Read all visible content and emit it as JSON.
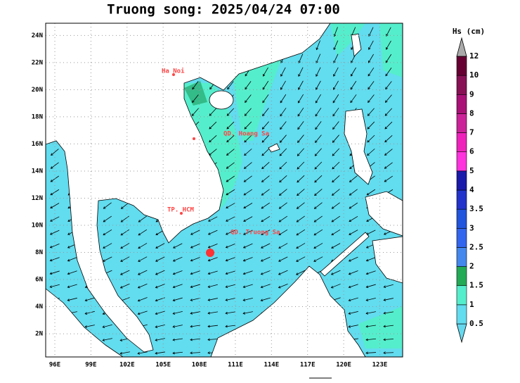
{
  "title": "Truong song: 2025/04/24 07:00",
  "map": {
    "sea_color": "#62dcef",
    "lon_range": [
      95.24,
      124.9
    ],
    "lat_range": [
      0.29,
      24.9
    ],
    "lat_ticks": [
      {
        "value": 2,
        "label": "2N"
      },
      {
        "value": 4,
        "label": "4N"
      },
      {
        "value": 6,
        "label": "6N"
      },
      {
        "value": 8,
        "label": "8N"
      },
      {
        "value": 10,
        "label": "10N"
      },
      {
        "value": 12,
        "label": "12N"
      },
      {
        "value": 14,
        "label": "14N"
      },
      {
        "value": 16,
        "label": "16N"
      },
      {
        "value": 18,
        "label": "18N"
      },
      {
        "value": 20,
        "label": "20N"
      },
      {
        "value": 22,
        "label": "22N"
      },
      {
        "value": 24,
        "label": "24N"
      }
    ],
    "lon_ticks": [
      {
        "value": 96,
        "label": "96E"
      },
      {
        "value": 99,
        "label": "99E"
      },
      {
        "value": 102,
        "label": "102E"
      },
      {
        "value": 105,
        "label": "105E"
      },
      {
        "value": 108,
        "label": "108E"
      },
      {
        "value": 111,
        "label": "111E"
      },
      {
        "value": 114,
        "label": "114E"
      },
      {
        "value": 117,
        "label": "117E"
      },
      {
        "value": 120,
        "label": "120E"
      },
      {
        "value": 123,
        "label": "123E"
      }
    ],
    "places": [
      "Ha Noi",
      "QD. Hoang Sa",
      "TP. HCM",
      "QD. Truong Sa"
    ]
  },
  "colorbar": {
    "title": "Hs (cm)",
    "levels": [
      0.5,
      1,
      1.5,
      2,
      2.5,
      3,
      3.5,
      4,
      5,
      6,
      7,
      8,
      9,
      10,
      12
    ],
    "colors": [
      "#66d8ee",
      "#62dcef",
      "#55eecc",
      "#22aa55",
      "#4488ee",
      "#3366ee",
      "#2255dd",
      "#2233cc",
      "#1a1aaa",
      "#ff33dd",
      "#ee22bb",
      "#cc2299",
      "#aa1177",
      "#881155",
      "#660033",
      "#aaaaaa"
    ]
  }
}
